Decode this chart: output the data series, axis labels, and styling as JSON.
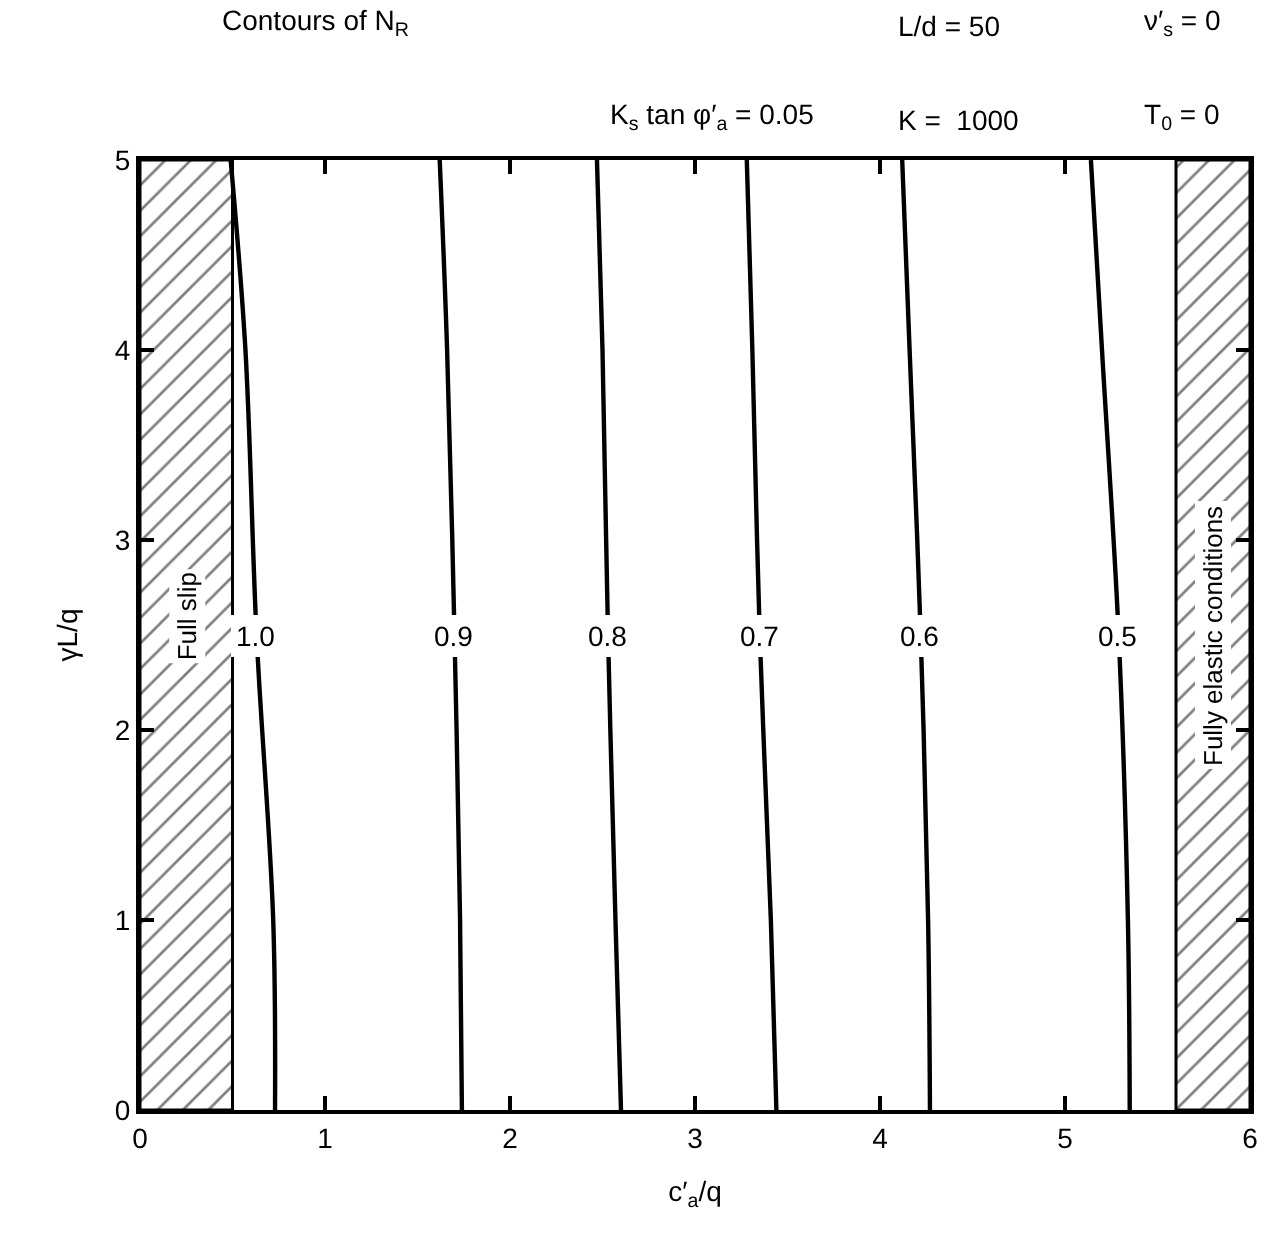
{
  "chart_data": {
    "type": "line",
    "title": "Contours of N$_{R}$",
    "subtitle": "K$_{s}$ tan φ′$_{a}$ = 0.05",
    "xlabel": "c′$_{a}$/q",
    "ylabel": "γL/q",
    "annotations": [
      "L/d = 50",
      "ν′$_{s}$ = 0",
      "K =  1000",
      "T$_{0}$ = 0"
    ],
    "xlim": [
      0,
      6
    ],
    "ylim": [
      0,
      5
    ],
    "xticks": [
      0,
      1,
      2,
      3,
      4,
      5,
      6
    ],
    "yticks": [
      0,
      1,
      2,
      3,
      4,
      5
    ],
    "legend": false,
    "marker": "none",
    "line_style": "solid",
    "series": [
      {
        "name": "1.0",
        "color": "#000000",
        "x": [
          0.49,
          0.57,
          0.63,
          0.72,
          0.73
        ],
        "values": [
          5,
          4,
          2.5,
          1,
          0
        ]
      },
      {
        "name": "0.9",
        "color": "#000000",
        "x": [
          1.62,
          1.66,
          1.7,
          1.73,
          1.74
        ],
        "values": [
          5,
          4,
          2.5,
          1,
          0
        ]
      },
      {
        "name": "0.8",
        "color": "#000000",
        "x": [
          2.47,
          2.5,
          2.53,
          2.57,
          2.6
        ],
        "values": [
          5,
          4,
          2.5,
          1,
          0
        ]
      },
      {
        "name": "0.7",
        "color": "#000000",
        "x": [
          3.28,
          3.31,
          3.35,
          3.41,
          3.44
        ],
        "values": [
          5,
          4,
          2.5,
          1,
          0
        ]
      },
      {
        "name": "0.6",
        "color": "#000000",
        "x": [
          4.12,
          4.16,
          4.22,
          4.26,
          4.27
        ],
        "values": [
          5,
          4,
          2.5,
          1,
          0
        ]
      },
      {
        "name": "0.5",
        "color": "#000000",
        "x": [
          5.14,
          5.2,
          5.29,
          5.34,
          5.35
        ],
        "values": [
          5,
          4,
          2.5,
          1,
          0
        ]
      }
    ],
    "bands": [
      {
        "axis": "x",
        "from": 0,
        "to": 0.5,
        "label": "Full slip",
        "color": "#000000"
      },
      {
        "axis": "x",
        "from": 5.6,
        "to": 6,
        "label": "Fully elastic conditions",
        "color": "#000000"
      }
    ]
  }
}
